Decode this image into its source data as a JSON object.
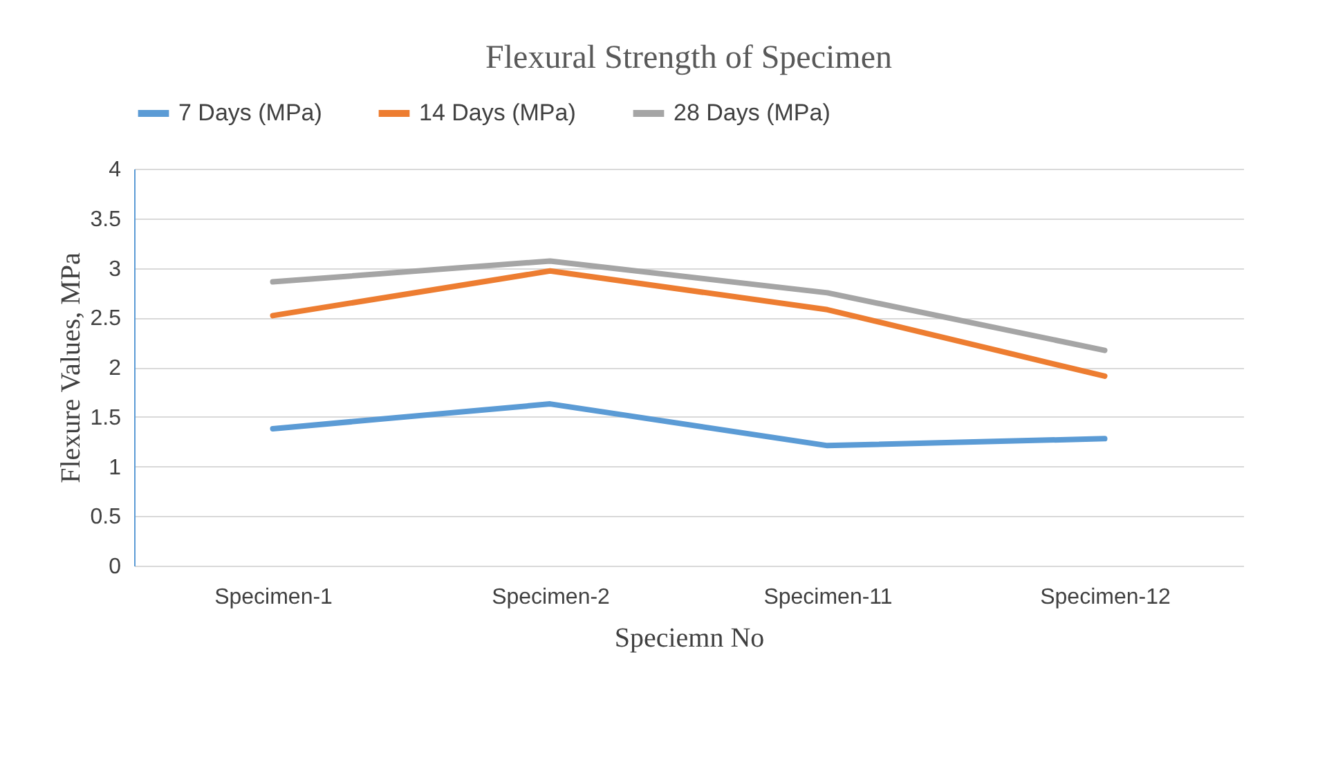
{
  "chart_data": {
    "type": "line",
    "title": "Flexural Strength of Specimen",
    "xlabel": "Speciemn No",
    "ylabel": "Flexure Values, MPa",
    "categories": [
      "Specimen-1",
      "Specimen-2",
      "Specimen-11",
      "Specimen-12"
    ],
    "series": [
      {
        "name": "7 Days (MPa)",
        "color": "#5b9bd5",
        "values": [
          1.38,
          1.63,
          1.21,
          1.28
        ]
      },
      {
        "name": "14 Days (MPa)",
        "color": "#ed7d31",
        "values": [
          2.52,
          2.97,
          2.58,
          1.91
        ]
      },
      {
        "name": "28 Days (MPa)",
        "color": "#a5a5a5",
        "values": [
          2.86,
          3.07,
          2.75,
          2.17
        ]
      }
    ],
    "ylim": [
      0,
      4
    ],
    "yticks": [
      0,
      0.5,
      1,
      1.5,
      2,
      2.5,
      3,
      3.5,
      4
    ],
    "grid": "y",
    "legend": "top",
    "marker": "none",
    "line_style": "solid"
  }
}
